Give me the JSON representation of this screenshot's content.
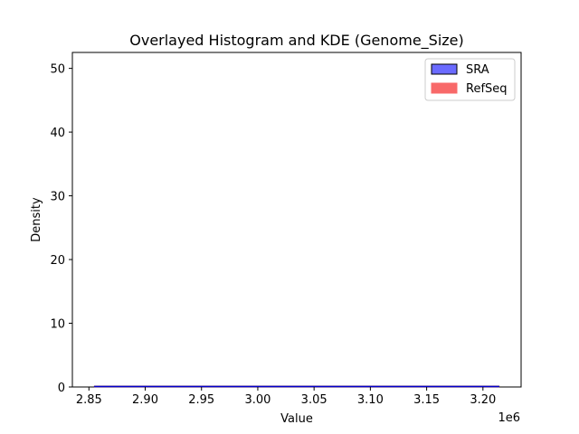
{
  "chart_data": {
    "type": "histogram",
    "title": "Overlayed Histogram and KDE (Genome_Size)",
    "xlabel": "Value",
    "ylabel": "Density",
    "x_offset_label": "1e6",
    "x_ticks": [
      2.85,
      2.9,
      2.95,
      3.0,
      3.05,
      3.1,
      3.15,
      3.2
    ],
    "x_tick_labels": [
      "2.85",
      "2.90",
      "2.95",
      "3.00",
      "3.05",
      "3.10",
      "3.15",
      "3.20"
    ],
    "x_lim": [
      2.8353,
      3.2339
    ],
    "y_ticks": [
      0,
      10,
      20,
      30,
      40,
      50
    ],
    "y_tick_labels": [
      "0",
      "10",
      "20",
      "30",
      "40",
      "50"
    ],
    "y_lim": [
      0,
      52.5
    ],
    "grid": false,
    "legend_position": "top-right",
    "series": [
      {
        "name": "SRA",
        "kind": "histogram+kde",
        "fill_color": "#6b6bff",
        "edge_color": "#000000",
        "line_color": "#0000cc",
        "x_range": [
          2.8547,
          3.2145
        ],
        "density": 0.0
      },
      {
        "name": "RefSeq",
        "kind": "histogram+kde",
        "fill_color": "#f86969",
        "edge_color": "#f86969",
        "line_color": "#d62728",
        "x_range": [
          2.8547,
          3.2145
        ],
        "density": 0.0
      }
    ]
  }
}
